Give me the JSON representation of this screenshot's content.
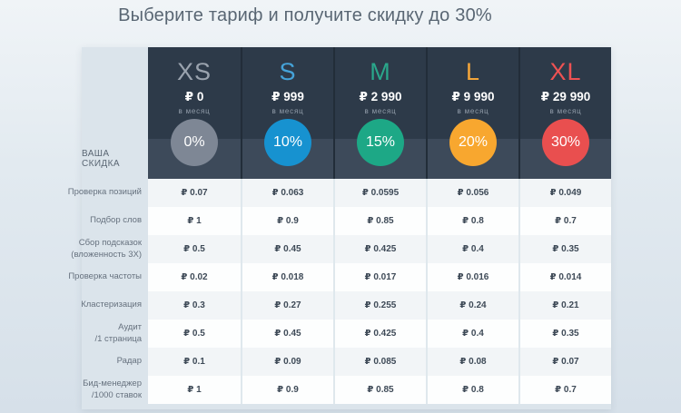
{
  "title": "Выберите тариф и получите скидку до 30%",
  "discount_row_label": "ВАША СКИДКА",
  "period_label": "в месяц",
  "colors": {
    "header_dark": "#2d3a49",
    "discount_band": "#3d4a5a",
    "label_column": "#dbe4eb",
    "row_stripe": "#f2f5f7",
    "value_text": "#3e4a57",
    "title_text": "#596673"
  },
  "tiers": [
    {
      "name": "XS",
      "price": "₽ 0",
      "discount": "0%",
      "name_color": "#9aa3ae",
      "circle_color": "#7e8795"
    },
    {
      "name": "S",
      "price": "₽ 999",
      "discount": "10%",
      "name_color": "#45a3d9",
      "circle_color": "#1792d0"
    },
    {
      "name": "M",
      "price": "₽ 2 990",
      "discount": "15%",
      "name_color": "#2aa78b",
      "circle_color": "#1da886"
    },
    {
      "name": "L",
      "price": "₽ 9 990",
      "discount": "20%",
      "name_color": "#f3a53a",
      "circle_color": "#f8a72f"
    },
    {
      "name": "XL",
      "price": "₽ 29 990",
      "discount": "30%",
      "name_color": "#ee5253",
      "circle_color": "#e94f4f"
    }
  ],
  "rows": [
    {
      "label": "Проверка позиций",
      "values": [
        "₽ 0.07",
        "₽ 0.063",
        "₽ 0.0595",
        "₽ 0.056",
        "₽ 0.049"
      ]
    },
    {
      "label": "Подбор слов",
      "values": [
        "₽ 1",
        "₽ 0.9",
        "₽ 0.85",
        "₽ 0.8",
        "₽ 0.7"
      ]
    },
    {
      "label": "Сбор подсказок",
      "label2": "(вложенность 3X)",
      "values": [
        "₽ 0.5",
        "₽ 0.45",
        "₽ 0.425",
        "₽ 0.4",
        "₽ 0.35"
      ]
    },
    {
      "label": "Проверка частоты",
      "values": [
        "₽ 0.02",
        "₽ 0.018",
        "₽ 0.017",
        "₽ 0.016",
        "₽ 0.014"
      ]
    },
    {
      "label": "Кластеризация",
      "values": [
        "₽ 0.3",
        "₽ 0.27",
        "₽ 0.255",
        "₽ 0.24",
        "₽ 0.21"
      ]
    },
    {
      "label": "Аудит",
      "label2": "/1 страница",
      "values": [
        "₽ 0.5",
        "₽ 0.45",
        "₽ 0.425",
        "₽ 0.4",
        "₽ 0.35"
      ]
    },
    {
      "label": "Радар",
      "values": [
        "₽ 0.1",
        "₽ 0.09",
        "₽ 0.085",
        "₽ 0.08",
        "₽ 0.07"
      ]
    },
    {
      "label": "Бид-менеджер",
      "label2": "/1000 ставок",
      "values": [
        "₽ 1",
        "₽ 0.9",
        "₽ 0.85",
        "₽ 0.8",
        "₽ 0.7"
      ]
    }
  ]
}
